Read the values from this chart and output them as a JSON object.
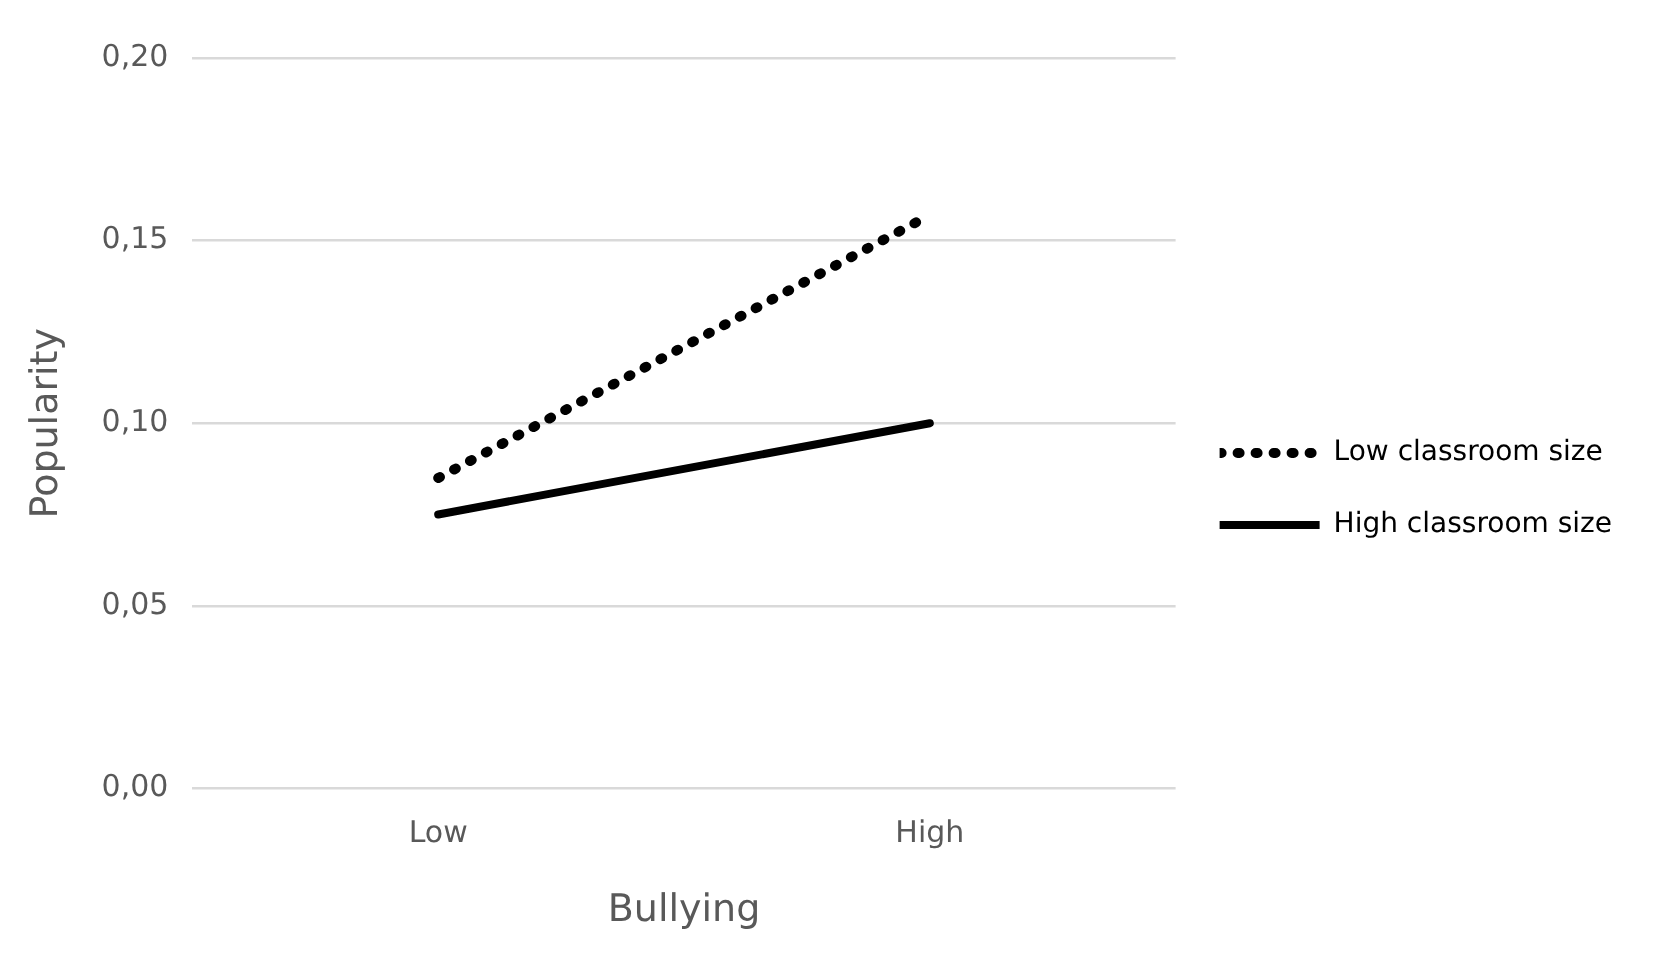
{
  "chart_data": {
    "type": "line",
    "xlabel": "Bullying",
    "ylabel": "Popularity",
    "categories": [
      "Low",
      "High"
    ],
    "series": [
      {
        "name": "Low classroom size",
        "color": "#000000",
        "values": [
          0.085,
          0.157
        ],
        "line_style": "dotted"
      },
      {
        "name": "High classroom size",
        "color": "#000000",
        "values": [
          0.075,
          0.1
        ],
        "line_style": "solid"
      }
    ],
    "ylim": [
      0,
      0.2
    ],
    "yticks": [
      {
        "value": 0,
        "label": "0,00"
      },
      {
        "value": 0.05,
        "label": "0,05"
      },
      {
        "value": 0.1,
        "label": "0,10"
      },
      {
        "value": 0.15,
        "label": "0,15"
      },
      {
        "value": 0.2,
        "label": "0,20"
      }
    ],
    "grid": "y",
    "legend": "right",
    "marker": "none"
  }
}
